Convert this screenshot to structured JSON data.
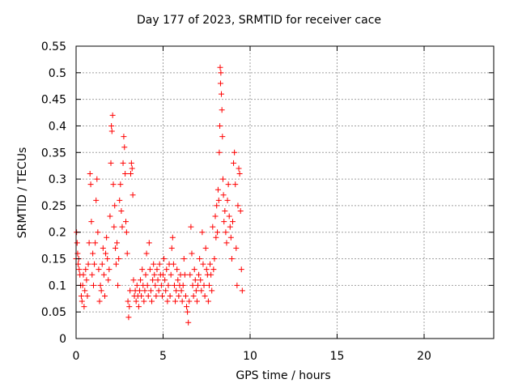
{
  "chart_data": {
    "type": "scatter",
    "title": "Day 177 of 2023, SRMTID for receiver cace",
    "xlabel": "GPS time / hours",
    "ylabel": "SRMTID / TECUs",
    "xlim": [
      0,
      24
    ],
    "ylim": [
      0,
      0.55
    ],
    "xticks": [
      0,
      5,
      10,
      15,
      20
    ],
    "yticks": [
      0,
      0.05,
      0.1,
      0.15,
      0.2,
      0.25,
      0.3,
      0.35,
      0.4,
      0.45,
      0.5,
      0.55
    ],
    "xtick_labels": [
      "0",
      "5",
      "10",
      "15",
      "20"
    ],
    "ytick_labels": [
      "0",
      "0.05",
      "0.1",
      "0.15",
      "0.2",
      "0.25",
      "0.3",
      "0.35",
      "0.4",
      "0.45",
      "0.5",
      "0.55"
    ],
    "grid": true,
    "marker": "+",
    "color": "#ff0000",
    "series": [
      {
        "values": [
          [
            0.0,
            0.15
          ],
          [
            0.03,
            0.2
          ],
          [
            0.06,
            0.18
          ],
          [
            0.09,
            0.16
          ],
          [
            0.12,
            0.14
          ],
          [
            0.15,
            0.15
          ],
          [
            0.18,
            0.13
          ],
          [
            0.22,
            0.12
          ],
          [
            0.26,
            0.1
          ],
          [
            0.3,
            0.08
          ],
          [
            0.34,
            0.07
          ],
          [
            0.38,
            0.1
          ],
          [
            0.42,
            0.12
          ],
          [
            0.46,
            0.06
          ],
          [
            0.5,
            0.09
          ],
          [
            0.55,
            0.13
          ],
          [
            0.6,
            0.11
          ],
          [
            0.65,
            0.08
          ],
          [
            0.7,
            0.14
          ],
          [
            0.75,
            0.18
          ],
          [
            0.8,
            0.31
          ],
          [
            0.84,
            0.29
          ],
          [
            0.88,
            0.22
          ],
          [
            0.92,
            0.12
          ],
          [
            0.96,
            0.16
          ],
          [
            1.0,
            0.1
          ],
          [
            1.05,
            0.14
          ],
          [
            1.1,
            0.18
          ],
          [
            1.15,
            0.26
          ],
          [
            1.2,
            0.3
          ],
          [
            1.25,
            0.2
          ],
          [
            1.3,
            0.13
          ],
          [
            1.35,
            0.07
          ],
          [
            1.4,
            0.1
          ],
          [
            1.45,
            0.09
          ],
          [
            1.5,
            0.14
          ],
          [
            1.55,
            0.17
          ],
          [
            1.6,
            0.12
          ],
          [
            1.65,
            0.08
          ],
          [
            1.7,
            0.16
          ],
          [
            1.75,
            0.19
          ],
          [
            1.8,
            0.15
          ],
          [
            1.85,
            0.11
          ],
          [
            1.9,
            0.13
          ],
          [
            1.95,
            0.23
          ],
          [
            2.0,
            0.33
          ],
          [
            2.03,
            0.4
          ],
          [
            2.06,
            0.39
          ],
          [
            2.1,
            0.42
          ],
          [
            2.14,
            0.29
          ],
          [
            2.18,
            0.21
          ],
          [
            2.22,
            0.25
          ],
          [
            2.26,
            0.17
          ],
          [
            2.3,
            0.14
          ],
          [
            2.35,
            0.18
          ],
          [
            2.4,
            0.1
          ],
          [
            2.45,
            0.15
          ],
          [
            2.5,
            0.26
          ],
          [
            2.55,
            0.29
          ],
          [
            2.6,
            0.24
          ],
          [
            2.65,
            0.21
          ],
          [
            2.7,
            0.33
          ],
          [
            2.74,
            0.38
          ],
          [
            2.78,
            0.36
          ],
          [
            2.82,
            0.31
          ],
          [
            2.86,
            0.22
          ],
          [
            2.9,
            0.2
          ],
          [
            2.94,
            0.16
          ],
          [
            2.98,
            0.07
          ],
          [
            3.02,
            0.04
          ],
          [
            3.06,
            0.06
          ],
          [
            3.1,
            0.09
          ],
          [
            3.14,
            0.31
          ],
          [
            3.18,
            0.33
          ],
          [
            3.22,
            0.32
          ],
          [
            3.26,
            0.27
          ],
          [
            3.3,
            0.11
          ],
          [
            3.35,
            0.08
          ],
          [
            3.4,
            0.09
          ],
          [
            3.45,
            0.07
          ],
          [
            3.5,
            0.1
          ],
          [
            3.55,
            0.08
          ],
          [
            3.6,
            0.06
          ],
          [
            3.65,
            0.09
          ],
          [
            3.7,
            0.11
          ],
          [
            3.75,
            0.08
          ],
          [
            3.8,
            0.13
          ],
          [
            3.85,
            0.1
          ],
          [
            3.9,
            0.07
          ],
          [
            3.95,
            0.09
          ],
          [
            4.0,
            0.12
          ],
          [
            4.05,
            0.16
          ],
          [
            4.1,
            0.1
          ],
          [
            4.15,
            0.08
          ],
          [
            4.2,
            0.18
          ],
          [
            4.25,
            0.13
          ],
          [
            4.3,
            0.09
          ],
          [
            4.35,
            0.07
          ],
          [
            4.4,
            0.11
          ],
          [
            4.45,
            0.14
          ],
          [
            4.5,
            0.12
          ],
          [
            4.55,
            0.1
          ],
          [
            4.6,
            0.08
          ],
          [
            4.65,
            0.13
          ],
          [
            4.7,
            0.11
          ],
          [
            4.75,
            0.09
          ],
          [
            4.8,
            0.14
          ],
          [
            4.85,
            0.12
          ],
          [
            4.9,
            0.1
          ],
          [
            4.95,
            0.08
          ],
          [
            5.0,
            0.12
          ],
          [
            5.05,
            0.15
          ],
          [
            5.1,
            0.11
          ],
          [
            5.15,
            0.09
          ],
          [
            5.2,
            0.13
          ],
          [
            5.25,
            0.07
          ],
          [
            5.3,
            0.1
          ],
          [
            5.35,
            0.14
          ],
          [
            5.4,
            0.08
          ],
          [
            5.45,
            0.12
          ],
          [
            5.5,
            0.17
          ],
          [
            5.55,
            0.19
          ],
          [
            5.6,
            0.14
          ],
          [
            5.65,
            0.1
          ],
          [
            5.7,
            0.07
          ],
          [
            5.75,
            0.09
          ],
          [
            5.8,
            0.13
          ],
          [
            5.85,
            0.11
          ],
          [
            5.9,
            0.08
          ],
          [
            5.95,
            0.1
          ],
          [
            6.0,
            0.12
          ],
          [
            6.05,
            0.09
          ],
          [
            6.1,
            0.07
          ],
          [
            6.15,
            0.1
          ],
          [
            6.2,
            0.15
          ],
          [
            6.25,
            0.12
          ],
          [
            6.3,
            0.08
          ],
          [
            6.35,
            0.06
          ],
          [
            6.4,
            0.05
          ],
          [
            6.45,
            0.03
          ],
          [
            6.5,
            0.07
          ],
          [
            6.55,
            0.12
          ],
          [
            6.6,
            0.21
          ],
          [
            6.65,
            0.16
          ],
          [
            6.7,
            0.1
          ],
          [
            6.75,
            0.08
          ],
          [
            6.8,
            0.13
          ],
          [
            6.85,
            0.11
          ],
          [
            6.9,
            0.09
          ],
          [
            6.95,
            0.07
          ],
          [
            7.0,
            0.1
          ],
          [
            7.05,
            0.12
          ],
          [
            7.1,
            0.15
          ],
          [
            7.15,
            0.11
          ],
          [
            7.2,
            0.09
          ],
          [
            7.25,
            0.2
          ],
          [
            7.3,
            0.14
          ],
          [
            7.35,
            0.1
          ],
          [
            7.4,
            0.08
          ],
          [
            7.45,
            0.17
          ],
          [
            7.5,
            0.13
          ],
          [
            7.55,
            0.12
          ],
          [
            7.6,
            0.07
          ],
          [
            7.65,
            0.1
          ],
          [
            7.7,
            0.14
          ],
          [
            7.75,
            0.12
          ],
          [
            7.8,
            0.09
          ],
          [
            7.85,
            0.21
          ],
          [
            7.9,
            0.13
          ],
          [
            7.95,
            0.15
          ],
          [
            8.0,
            0.23
          ],
          [
            8.04,
            0.19
          ],
          [
            8.08,
            0.25
          ],
          [
            8.12,
            0.2
          ],
          [
            8.16,
            0.28
          ],
          [
            8.2,
            0.26
          ],
          [
            8.23,
            0.35
          ],
          [
            8.26,
            0.4
          ],
          [
            8.28,
            0.51
          ],
          [
            8.3,
            0.48
          ],
          [
            8.32,
            0.5
          ],
          [
            8.35,
            0.46
          ],
          [
            8.38,
            0.43
          ],
          [
            8.41,
            0.38
          ],
          [
            8.44,
            0.3
          ],
          [
            8.47,
            0.27
          ],
          [
            8.5,
            0.22
          ],
          [
            8.55,
            0.24
          ],
          [
            8.6,
            0.2
          ],
          [
            8.65,
            0.18
          ],
          [
            8.7,
            0.26
          ],
          [
            8.75,
            0.29
          ],
          [
            8.8,
            0.23
          ],
          [
            8.85,
            0.21
          ],
          [
            8.9,
            0.19
          ],
          [
            8.95,
            0.15
          ],
          [
            9.0,
            0.22
          ],
          [
            9.05,
            0.33
          ],
          [
            9.1,
            0.35
          ],
          [
            9.15,
            0.29
          ],
          [
            9.2,
            0.17
          ],
          [
            9.25,
            0.1
          ],
          [
            9.3,
            0.25
          ],
          [
            9.35,
            0.32
          ],
          [
            9.4,
            0.31
          ],
          [
            9.45,
            0.24
          ],
          [
            9.5,
            0.13
          ],
          [
            9.55,
            0.09
          ]
        ]
      }
    ]
  }
}
